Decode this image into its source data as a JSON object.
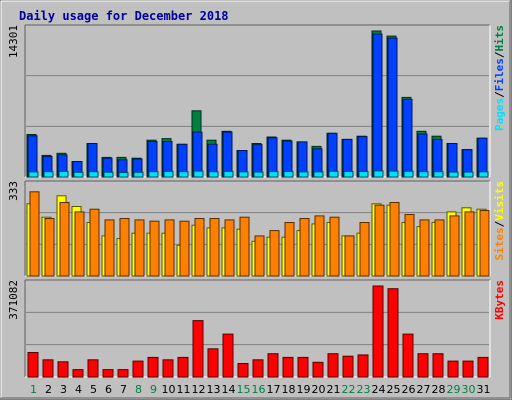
{
  "chart_data": {
    "type": "bar",
    "title": "Daily usage for December 2018",
    "categories": [
      "1",
      "2",
      "3",
      "4",
      "5",
      "6",
      "7",
      "8",
      "9",
      "10",
      "11",
      "12",
      "13",
      "14",
      "15",
      "16",
      "17",
      "18",
      "19",
      "20",
      "21",
      "22",
      "23",
      "24",
      "25",
      "26",
      "27",
      "28",
      "29",
      "30",
      "31"
    ],
    "weekend_days": [
      "1",
      "8",
      "9",
      "15",
      "16",
      "22",
      "23",
      "29",
      "30"
    ],
    "colors": {
      "hits": "#008040",
      "files": "#0040ff",
      "pages": "#00e0ff",
      "visits": "#ffff00",
      "sites": "#ff8000",
      "kbytes": "#ff0000",
      "weekday_label": "#000000",
      "weekend_label": "#008040",
      "title": "#0000a0",
      "background": "#c0c0c0",
      "plot_background": "#c0c0c0",
      "gridline": "#808080"
    },
    "panels": [
      {
        "id": "hits",
        "ymax": 14301,
        "ymax_label": "14301",
        "side_labels": [
          {
            "text": "Hits",
            "color": "#008040"
          },
          {
            "text": "/",
            "color": "#000000"
          },
          {
            "text": "Files",
            "color": "#0040ff"
          },
          {
            "text": "/",
            "color": "#000000"
          },
          {
            "text": "Pages",
            "color": "#00e0ff"
          }
        ],
        "series": [
          {
            "key": "hits",
            "values": [
              4160,
              2120,
              2320,
              1520,
              3280,
              1920,
              1920,
              1840,
              3600,
              3760,
              3200,
              6480,
              3600,
              4480,
              2600,
              3280,
              3920,
              3600,
              3440,
              3000,
              4280,
              3680,
              4000,
              14301,
              13800,
              7800,
              4480,
              4000,
              3280,
              2680,
              3800
            ]
          },
          {
            "key": "files",
            "values": [
              4040,
              2000,
              2160,
              1520,
              3280,
              1840,
              1680,
              1760,
              3480,
              3480,
              3200,
              4400,
              3200,
              4400,
              2600,
              3160,
              3840,
              3520,
              3440,
              2760,
              4280,
              3680,
              3960,
              14000,
              13600,
              7600,
              4200,
              3680,
              3280,
              2680,
              3800
            ]
          },
          {
            "key": "pages",
            "values": [
              500,
              520,
              550,
              460,
              520,
              470,
              430,
              460,
              520,
              550,
              520,
              580,
              520,
              550,
              500,
              480,
              530,
              540,
              500,
              500,
              560,
              540,
              540,
              600,
              580,
              560,
              520,
              520,
              480,
              480,
              500
            ]
          }
        ]
      },
      {
        "id": "visits",
        "ymax": 333,
        "ymax_label": "333",
        "side_labels": [
          {
            "text": "Visits",
            "color": "#ffff00"
          },
          {
            "text": "/",
            "color": "#000000"
          },
          {
            "text": "Sites",
            "color": "#ff8000"
          }
        ],
        "series": [
          {
            "key": "visits",
            "values": [
              270,
              220,
              300,
              260,
              200,
              150,
              140,
              160,
              160,
              160,
              115,
              190,
              180,
              180,
              175,
              130,
              145,
              145,
              170,
              195,
              200,
              150,
              160,
              270,
              265,
              200,
              185,
              200,
              240,
              255,
              250
            ]
          },
          {
            "key": "sites",
            "values": [
              315,
              215,
              275,
              240,
              250,
              210,
              215,
              210,
              205,
              210,
              205,
              215,
              215,
              210,
              220,
              150,
              170,
              200,
              215,
              225,
              220,
              150,
              200,
              265,
              275,
              230,
              210,
              210,
              225,
              240,
              245
            ]
          }
        ]
      },
      {
        "id": "kbytes",
        "ymax": 371082,
        "ymax_label": "371082",
        "side_labels": [
          {
            "text": "KBytes",
            "color": "#ff0000"
          }
        ],
        "series": [
          {
            "key": "kbytes",
            "values": [
              100000,
              70000,
              62000,
              30000,
              70000,
              30000,
              30000,
              65000,
              80000,
              70000,
              80000,
              230000,
              115000,
              175000,
              55000,
              70000,
              95000,
              80000,
              80000,
              60000,
              95000,
              85000,
              90000,
              371082,
              360000,
              175000,
              95000,
              95000,
              65000,
              65000,
              80000
            ]
          }
        ]
      }
    ]
  }
}
